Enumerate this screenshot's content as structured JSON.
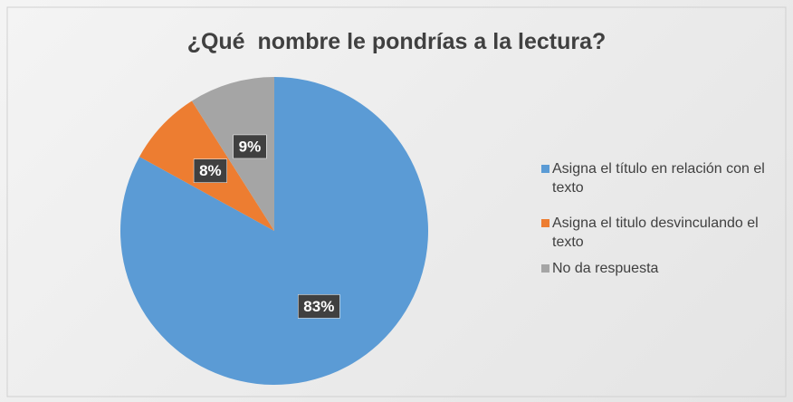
{
  "chart_data": {
    "type": "pie",
    "title": "¿Qué  nombre le pondrías a la lectura?",
    "categories": [
      "Asigna el título en relación con el texto",
      "Asigna el titulo desvinculando el texto",
      "No da respuesta"
    ],
    "values": [
      83,
      8,
      9
    ],
    "value_labels": [
      "83%",
      "8%",
      "9%"
    ],
    "colors": [
      "#5b9bd5",
      "#ed7d31",
      "#a5a5a5"
    ],
    "legend": "right"
  }
}
